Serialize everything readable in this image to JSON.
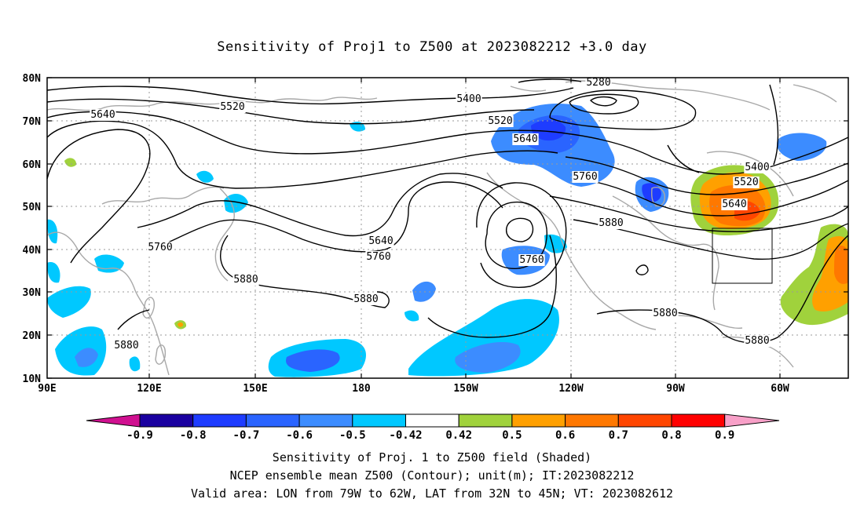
{
  "title": "Sensitivity of Proj1 to Z500 at 2023082212 +3.0 day",
  "map": {
    "lat_labels": [
      "80N",
      "70N",
      "60N",
      "50N",
      "40N",
      "30N",
      "20N",
      "10N"
    ],
    "lon_labels": [
      "90E",
      "120E",
      "150E",
      "180",
      "150W",
      "120W",
      "90W",
      "60W"
    ],
    "contour_labels": [
      {
        "text": "5280"
      },
      {
        "text": "5400"
      },
      {
        "text": "5520"
      },
      {
        "text": "5520"
      },
      {
        "text": "5640"
      },
      {
        "text": "5640"
      },
      {
        "text": "5640"
      },
      {
        "text": "5760"
      },
      {
        "text": "5760"
      },
      {
        "text": "5760"
      },
      {
        "text": "5760"
      },
      {
        "text": "5880"
      },
      {
        "text": "5880"
      },
      {
        "text": "5880"
      },
      {
        "text": "5880"
      },
      {
        "text": "5880"
      },
      {
        "text": "5880"
      },
      {
        "text": "5400"
      },
      {
        "text": "5520"
      },
      {
        "text": "5640"
      }
    ]
  },
  "colorbar": {
    "labels": [
      "-0.9",
      "-0.8",
      "-0.7",
      "-0.6",
      "-0.5",
      "-0.42",
      "0.42",
      "0.5",
      "0.6",
      "0.7",
      "0.8",
      "0.9"
    ],
    "colors": [
      "#1a00a0",
      "#1e3cff",
      "#2a64ff",
      "#3c8cff",
      "#00c8ff",
      "#ffffff",
      "#a0d23c",
      "#ffa000",
      "#ff7800",
      "#ff4600",
      "#ff0000"
    ],
    "end_low": "#d01090",
    "end_high": "#f8a0c8"
  },
  "caption": {
    "line1": "Sensitivity of Proj. 1 to Z500 field (Shaded)",
    "line2": "NCEP ensemble mean Z500 (Contour); unit(m); IT:2023082212",
    "line3": "Valid area: LON from 79W to 62W, LAT from 32N to 45N; VT: 2023082612"
  }
}
